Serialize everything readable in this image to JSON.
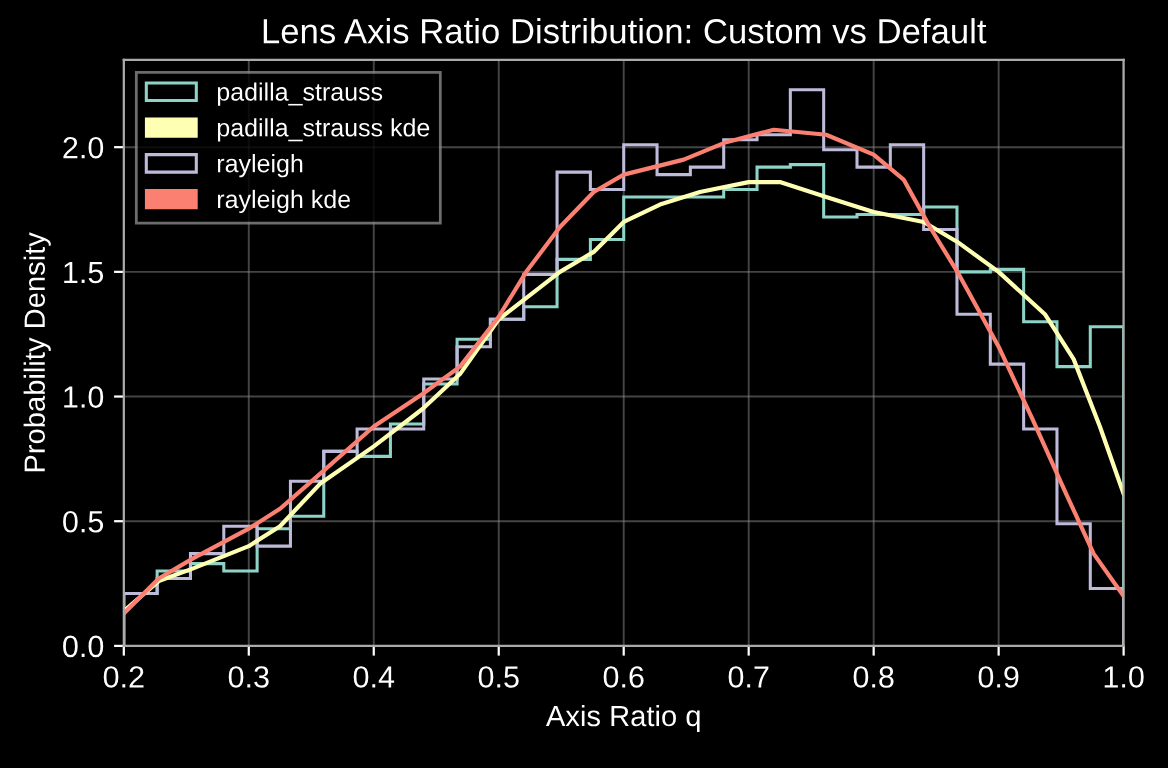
{
  "chart_data": {
    "type": "histogram",
    "title": "Lens Axis Ratio Distribution: Custom vs Default",
    "xlabel": "Axis Ratio q",
    "ylabel": "Probability Density",
    "bins": [
      0.2,
      0.22667,
      0.25333,
      0.28,
      0.30667,
      0.33333,
      0.36,
      0.38667,
      0.41333,
      0.44,
      0.46667,
      0.49333,
      0.52,
      0.54667,
      0.57333,
      0.6,
      0.62667,
      0.65333,
      0.68,
      0.70667,
      0.73333,
      0.76,
      0.78667,
      0.81333,
      0.84,
      0.86667,
      0.89333,
      0.92,
      0.94667,
      0.97333,
      1.0
    ],
    "series": [
      {
        "name": "padilla_strauss",
        "color": "#8dd3c7",
        "values": [
          0.21,
          0.3,
          0.33,
          0.3,
          0.47,
          0.52,
          0.78,
          0.76,
          0.89,
          1.05,
          1.23,
          1.31,
          1.36,
          1.55,
          1.63,
          1.8,
          1.8,
          1.8,
          1.83,
          1.92,
          1.93,
          1.72,
          1.73,
          1.73,
          1.76,
          1.5,
          1.51,
          1.3,
          1.12,
          1.28
        ]
      },
      {
        "name": "padilla_strauss kde",
        "type": "line",
        "color": "#ffffb3",
        "x": [
          0.2,
          0.228,
          0.255,
          0.3,
          0.325,
          0.357,
          0.4,
          0.439,
          0.469,
          0.5,
          0.549,
          0.576,
          0.6,
          0.629,
          0.661,
          0.7,
          0.725,
          0.762,
          0.8,
          0.84,
          0.867,
          0.9,
          0.937,
          0.96,
          0.981,
          1.0
        ],
        "values": [
          0.14,
          0.26,
          0.31,
          0.4,
          0.48,
          0.65,
          0.8,
          0.95,
          1.09,
          1.31,
          1.5,
          1.58,
          1.7,
          1.77,
          1.82,
          1.86,
          1.86,
          1.8,
          1.74,
          1.7,
          1.62,
          1.5,
          1.33,
          1.15,
          0.88,
          0.61
        ]
      },
      {
        "name": "rayleigh",
        "color": "#bebada",
        "values": [
          0.21,
          0.27,
          0.37,
          0.48,
          0.4,
          0.66,
          0.78,
          0.87,
          0.87,
          1.07,
          1.2,
          1.31,
          1.49,
          1.9,
          1.83,
          2.01,
          1.89,
          1.92,
          2.03,
          2.05,
          2.23,
          1.99,
          1.92,
          2.01,
          1.67,
          1.33,
          1.13,
          0.87,
          0.49,
          0.23
        ]
      },
      {
        "name": "rayleigh kde",
        "type": "line",
        "color": "#fb8072",
        "x": [
          0.2,
          0.228,
          0.255,
          0.3,
          0.325,
          0.357,
          0.4,
          0.439,
          0.469,
          0.5,
          0.522,
          0.549,
          0.576,
          0.6,
          0.648,
          0.682,
          0.72,
          0.762,
          0.8,
          0.824,
          0.845,
          0.867,
          0.9,
          0.927,
          0.954,
          0.976,
          1.0
        ],
        "values": [
          0.13,
          0.27,
          0.35,
          0.47,
          0.55,
          0.69,
          0.88,
          1.01,
          1.12,
          1.32,
          1.5,
          1.68,
          1.82,
          1.89,
          1.95,
          2.02,
          2.07,
          2.05,
          1.97,
          1.87,
          1.68,
          1.5,
          1.2,
          0.91,
          0.61,
          0.37,
          0.2
        ]
      }
    ],
    "xlim": [
      0.2,
      1.0
    ],
    "ylim": [
      0,
      2.35
    ],
    "xticks": [
      {
        "value": 0.2,
        "label": "0.2"
      },
      {
        "value": 0.3,
        "label": "0.3"
      },
      {
        "value": 0.4,
        "label": "0.4"
      },
      {
        "value": 0.5,
        "label": "0.5"
      },
      {
        "value": 0.6,
        "label": "0.6"
      },
      {
        "value": 0.7,
        "label": "0.7"
      },
      {
        "value": 0.8,
        "label": "0.8"
      },
      {
        "value": 0.9,
        "label": "0.9"
      },
      {
        "value": 1.0,
        "label": "1.0"
      }
    ],
    "yticks": [
      {
        "value": 0,
        "label": "0.0"
      },
      {
        "value": 0.5,
        "label": "0.5"
      },
      {
        "value": 1.0,
        "label": "1.0"
      },
      {
        "value": 1.5,
        "label": "1.5"
      },
      {
        "value": 2.0,
        "label": "2.0"
      }
    ],
    "grid": true,
    "legend": "top left"
  }
}
